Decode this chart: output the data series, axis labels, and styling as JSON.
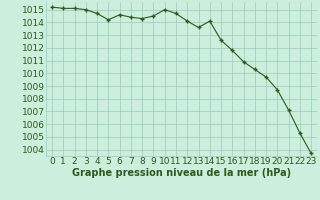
{
  "x": [
    0,
    1,
    2,
    3,
    4,
    5,
    6,
    7,
    8,
    9,
    10,
    11,
    12,
    13,
    14,
    15,
    16,
    17,
    18,
    19,
    20,
    21,
    22,
    23
  ],
  "y": [
    1015.2,
    1015.1,
    1015.1,
    1015.0,
    1014.7,
    1014.2,
    1014.6,
    1014.4,
    1014.3,
    1014.5,
    1015.0,
    1014.7,
    1014.1,
    1013.6,
    1014.1,
    1012.6,
    1011.8,
    1010.9,
    1010.3,
    1009.7,
    1008.7,
    1007.1,
    1005.3,
    1003.7
  ],
  "line_color": "#2d5a1b",
  "marker": "+",
  "marker_size": 3,
  "bg_color": "#cceedd",
  "grid_color": "#99ccbb",
  "ylabel_values": [
    1004,
    1005,
    1006,
    1007,
    1008,
    1009,
    1010,
    1011,
    1012,
    1013,
    1014,
    1015
  ],
  "ylim": [
    1003.5,
    1015.6
  ],
  "xlim": [
    -0.5,
    23.5
  ],
  "xlabel": "Graphe pression niveau de la mer (hPa)",
  "tick_color": "#2d5a1b",
  "label_fontsize": 6.5,
  "xlabel_fontsize": 7,
  "linewidth": 0.8
}
